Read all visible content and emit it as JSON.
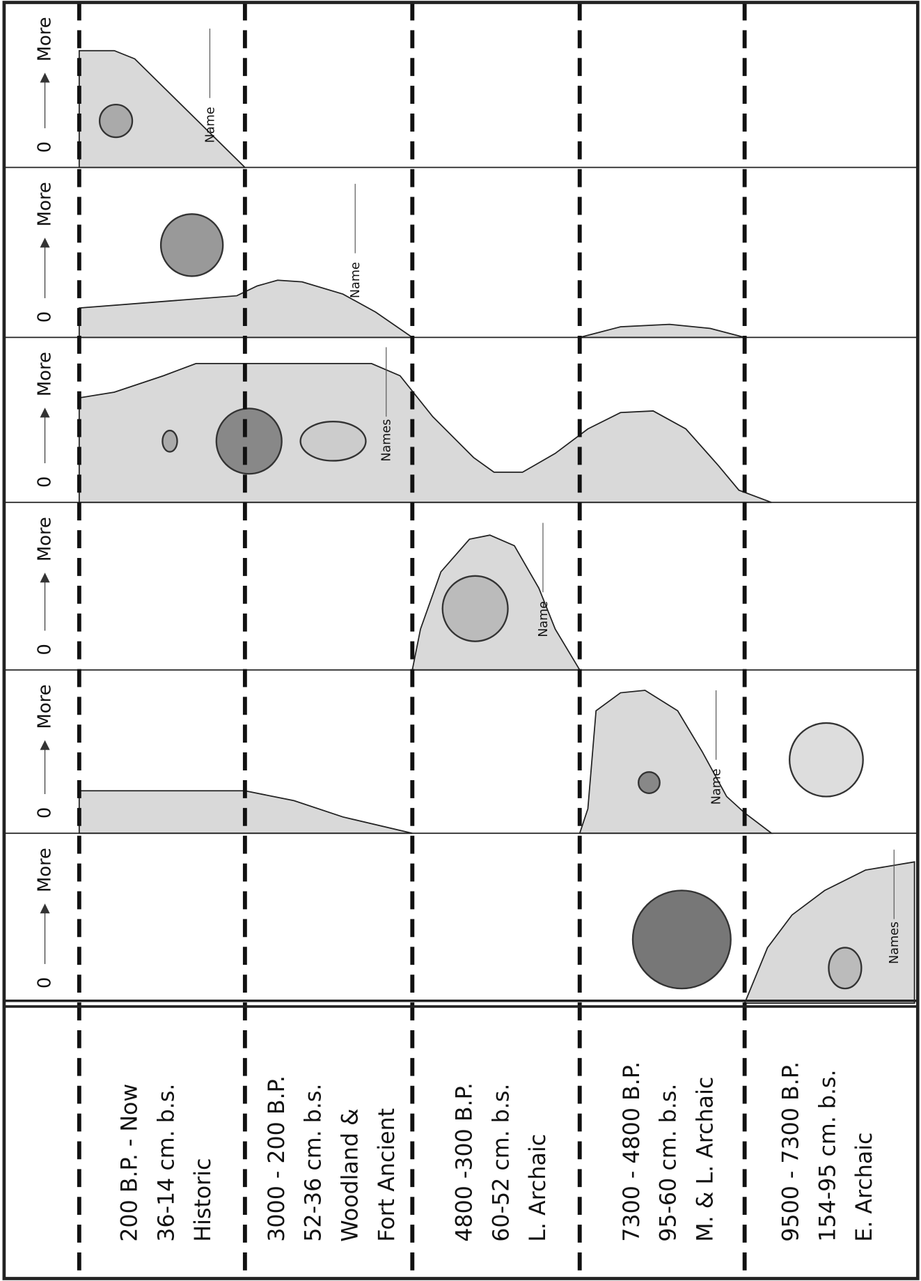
{
  "strips": [
    {
      "axis_min": "0",
      "axis_max": "More",
      "name_label": "Name"
    },
    {
      "axis_min": "0",
      "axis_max": "More",
      "name_label": "Name"
    },
    {
      "axis_min": "0",
      "axis_max": "More",
      "name_label": "Names"
    },
    {
      "axis_min": "0",
      "axis_max": "More",
      "name_label": "Name"
    },
    {
      "axis_min": "0",
      "axis_max": "More",
      "name_label": "Name"
    },
    {
      "axis_min": "0",
      "axis_max": "More",
      "name_label": "Names"
    }
  ],
  "periods": [
    {
      "lines": [
        "200 B.P. - Now",
        "36-14 cm. b.s.",
        "Historic"
      ]
    },
    {
      "lines": [
        "3000 - 200 B.P.",
        "52-36 cm. b.s.",
        "Woodland &",
        "Fort Ancient"
      ]
    },
    {
      "lines": [
        "4800 -300 B.P.",
        "60-52 cm. b.s.",
        "L. Archaic"
      ]
    },
    {
      "lines": [
        "7300 - 4800 B.P.",
        "95-60 cm. b.s.",
        "M. & L. Archaic"
      ]
    },
    {
      "lines": [
        "9500 - 7300 B.P.",
        "154-95 cm. b.s.",
        "E. Archaic"
      ]
    }
  ]
}
